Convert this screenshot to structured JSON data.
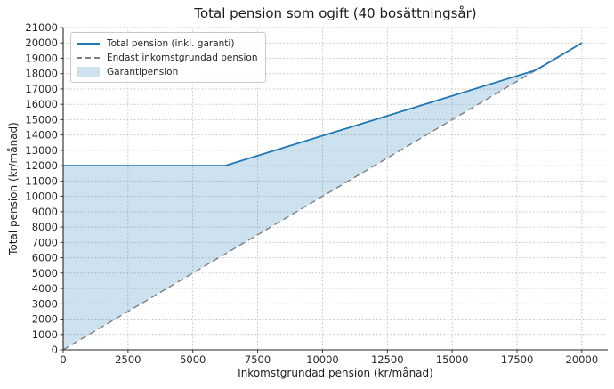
{
  "chart_data": {
    "type": "line",
    "title": "Total pension som ogift (40 bosättningsår)",
    "xlabel": "Inkomstgrundad pension (kr/månad)",
    "ylabel": "Total pension (kr/månad)",
    "xlim": [
      0,
      21000
    ],
    "ylim": [
      0,
      21000
    ],
    "x_ticks": [
      0,
      2500,
      5000,
      7500,
      10000,
      12500,
      15000,
      17500,
      20000
    ],
    "y_ticks": [
      0,
      1000,
      2000,
      3000,
      4000,
      5000,
      6000,
      7000,
      8000,
      9000,
      10000,
      11000,
      12000,
      13000,
      14000,
      15000,
      16000,
      17000,
      18000,
      19000,
      20000,
      21000
    ],
    "grid": {
      "style": "dotted",
      "color": "#c6c6c6"
    },
    "axis_color": "#262626",
    "legend_position": "upper-left",
    "series": [
      {
        "name": "Total pension (inkl. garanti)",
        "kind": "line",
        "style": "solid",
        "color": "#1f77b4",
        "width": 1.8,
        "points": [
          [
            0,
            12000
          ],
          [
            6250,
            12000
          ],
          [
            18230,
            18230
          ],
          [
            20000,
            20000
          ]
        ]
      },
      {
        "name": "Endast inkomstgrundad pension",
        "kind": "line",
        "style": "dashed",
        "color": "#7f7f7f",
        "width": 1.4,
        "points": [
          [
            0,
            0
          ],
          [
            20000,
            20000
          ]
        ]
      },
      {
        "name": "Garantipension",
        "kind": "area",
        "color": "rgba(31,119,180,0.22)",
        "points": [
          [
            0,
            0
          ],
          [
            0,
            12000
          ],
          [
            6250,
            12000
          ],
          [
            18230,
            18230
          ]
        ]
      }
    ]
  }
}
